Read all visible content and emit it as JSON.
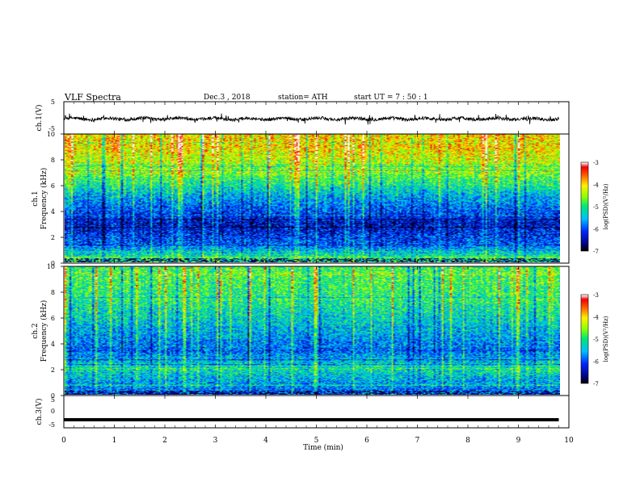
{
  "header": {
    "title": "VLF  Spectra",
    "date": "Dec.3  , 2018",
    "station": "station= ATH",
    "start": "start  UT  =   7  : 50 : 1"
  },
  "chart_data": [
    {
      "type": "line",
      "panel": "ch1-voltage",
      "ylabel": "ch.1(V)",
      "ylim": [
        -5,
        5
      ],
      "yticks": [
        "5",
        "-5"
      ],
      "xlim": [
        0,
        10
      ],
      "x_end": 9.8,
      "approx_mean": -0.3,
      "approx_envelope": [
        -1.5,
        0.8
      ],
      "color": "#000000"
    },
    {
      "type": "heatmap",
      "panel": "ch1-spectrogram",
      "ylabel": "ch.1\nFrequency (kHz)",
      "ylim": [
        0,
        10
      ],
      "yticks": [
        "0",
        "2",
        "4",
        "6",
        "8",
        "10"
      ],
      "xlim": [
        0,
        10
      ],
      "x_end": 9.8,
      "colorbar": {
        "label": "log(PSD)(V²/Hz)",
        "range": [
          -7,
          -3
        ],
        "ticks": [
          "-3",
          "-4",
          "-5",
          "-6",
          "-7"
        ]
      },
      "approx_profile": [
        {
          "freq_khz": 0.3,
          "log_psd": -5.0
        },
        {
          "freq_khz": 1.5,
          "log_psd": -6.0
        },
        {
          "freq_khz": 3.0,
          "log_psd": -6.4
        },
        {
          "freq_khz": 5.0,
          "log_psd": -5.6
        },
        {
          "freq_khz": 7.0,
          "log_psd": -4.6
        },
        {
          "freq_khz": 9.0,
          "log_psd": -4.0
        }
      ]
    },
    {
      "type": "heatmap",
      "panel": "ch2-spectrogram",
      "ylabel": "ch.2\nFrequency (kHz)",
      "ylim": [
        0,
        10
      ],
      "yticks": [
        "0",
        "2",
        "4",
        "6",
        "8",
        "10"
      ],
      "xlim": [
        0,
        10
      ],
      "x_end": 9.8,
      "colorbar": {
        "label": "log(PSD)(V²/Hz)",
        "range": [
          -7,
          -3
        ],
        "ticks": [
          "-3",
          "-4",
          "-5",
          "-6",
          "-7"
        ]
      },
      "approx_profile": [
        {
          "freq_khz": 0.5,
          "log_psd": -5.8
        },
        {
          "freq_khz": 2.0,
          "log_psd": -5.2
        },
        {
          "freq_khz": 3.5,
          "log_psd": -5.9
        },
        {
          "freq_khz": 5.5,
          "log_psd": -5.4
        },
        {
          "freq_khz": 7.5,
          "log_psd": -5.0
        },
        {
          "freq_khz": 9.5,
          "log_psd": -4.8
        }
      ]
    },
    {
      "type": "line",
      "panel": "ch3-voltage",
      "ylabel": "ch.3(V)",
      "ylim": [
        -5,
        5
      ],
      "yticks": [
        "5",
        "0",
        "-5"
      ],
      "xlim": [
        0,
        10
      ],
      "x_end": 9.8,
      "approx_mean": -2.5,
      "color": "#000000"
    }
  ],
  "xaxis": {
    "xlabel": "Time  (min)",
    "ticks": [
      "0",
      "1",
      "2",
      "3",
      "4",
      "5",
      "6",
      "7",
      "8",
      "9",
      "10"
    ]
  }
}
